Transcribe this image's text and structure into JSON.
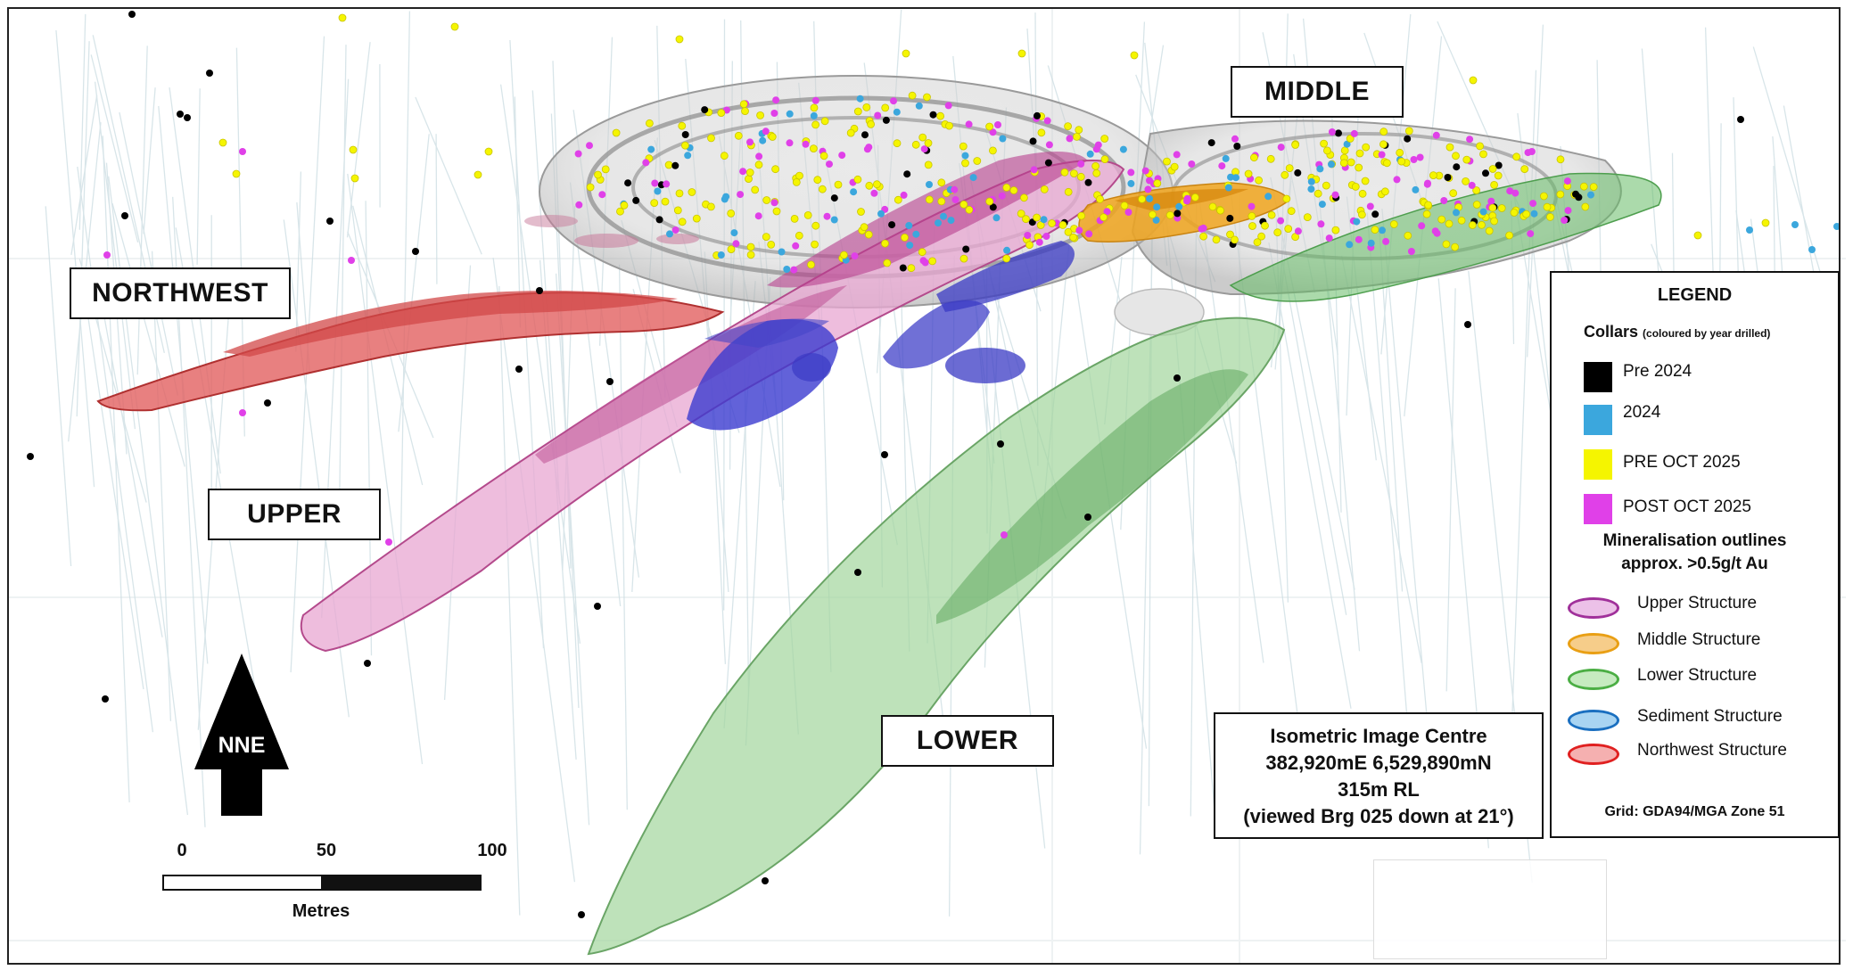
{
  "labels": {
    "northwest": "NORTHWEST",
    "middle": "MIDDLE",
    "upper": "UPPER",
    "lower": "LOWER",
    "north_arrow": "NNE"
  },
  "legend": {
    "title": "LEGEND",
    "collars_title": "Collars",
    "collars_subtitle": "(coloured by year drilled)",
    "collars": [
      {
        "label": "Pre 2024",
        "color": "#000000"
      },
      {
        "label": "2024",
        "color": "#3ba7dd"
      },
      {
        "label": "PRE OCT 2025",
        "color": "#f5f500"
      },
      {
        "label": "POST OCT 2025",
        "color": "#e040e8"
      }
    ],
    "mineralisation_title_1": "Mineralisation outlines",
    "mineralisation_title_2": "approx. >0.5g/t Au",
    "structures": [
      {
        "label": "Upper Structure",
        "fill": "#ecc1e8",
        "stroke": "#a0309a"
      },
      {
        "label": "Middle Structure",
        "fill": "#f6cd8a",
        "stroke": "#e99f14"
      },
      {
        "label": "Lower Structure",
        "fill": "#c6ebc0",
        "stroke": "#4bae44"
      },
      {
        "label": "Sediment Structure",
        "fill": "#a8d4f2",
        "stroke": "#1a6fc0"
      },
      {
        "label": "Northwest  Structure",
        "fill": "#f5b0b0",
        "stroke": "#e02020"
      }
    ],
    "grid": "Grid: GDA94/MGA Zone 51"
  },
  "info_box": {
    "line1": "Isometric Image Centre",
    "line2": "382,920mE  6,529,890mN",
    "line3": "315m RL",
    "line4": "(viewed Brg 025 down at 21°)"
  },
  "scale_bar": {
    "ticks": [
      "0",
      "50",
      "100"
    ],
    "unit": "Metres"
  }
}
